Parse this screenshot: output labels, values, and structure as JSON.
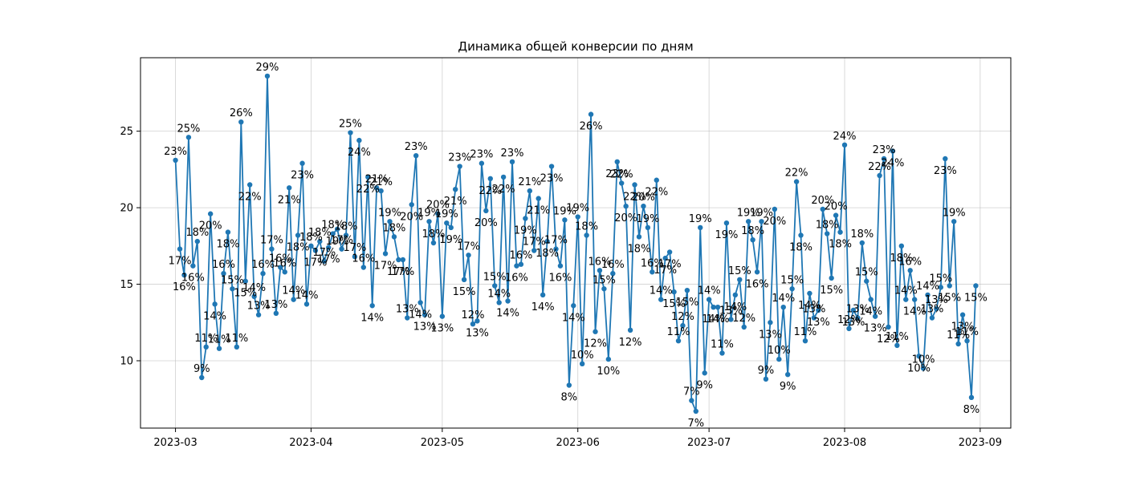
{
  "chart_data": {
    "type": "line",
    "title": "Динамика общей конверсии по дням",
    "xlabel": "",
    "ylabel": "",
    "x_start": "2023-03-01",
    "xlim": [
      "2023-02-21",
      "2023-09-08"
    ],
    "ylim": [
      5.6,
      29.8
    ],
    "x_ticks": [
      {
        "date": "2023-03-01",
        "label": "2023-03"
      },
      {
        "date": "2023-04-01",
        "label": "2023-04"
      },
      {
        "date": "2023-05-01",
        "label": "2023-05"
      },
      {
        "date": "2023-06-01",
        "label": "2023-06"
      },
      {
        "date": "2023-07-01",
        "label": "2023-07"
      },
      {
        "date": "2023-08-01",
        "label": "2023-08"
      },
      {
        "date": "2023-09-01",
        "label": "2023-09"
      }
    ],
    "y_ticks": [
      10,
      15,
      20,
      25
    ],
    "grid": true,
    "color": "#1f77b4",
    "labels_below": [
      1,
      2,
      4,
      8,
      9,
      12,
      16,
      17,
      26,
      28,
      29,
      32,
      35,
      37,
      42,
      44,
      45,
      48,
      51,
      52,
      54,
      56,
      57,
      61,
      63,
      64,
      66,
      69,
      71,
      72,
      75,
      76,
      78,
      80,
      83,
      84,
      85,
      86,
      88,
      90,
      91,
      95,
      96,
      99,
      101,
      103,
      104,
      105,
      106,
      110,
      112,
      113,
      114,
      117,
      119,
      121,
      123,
      124,
      126,
      128,
      133,
      136,
      137,
      140,
      143,
      145,
      147,
      150,
      152,
      155,
      159,
      160,
      163,
      164,
      166,
      169,
      170,
      176,
      177,
      180,
      182,
      183,
      186,
      191,
      192,
      194,
      198,
      200,
      203,
      204,
      206,
      207,
      211,
      212,
      214,
      215,
      219,
      220,
      226,
      227,
      229,
      230,
      231,
      232,
      233,
      236,
      238,
      239,
      241,
      243,
      245
    ],
    "values": [
      23.1,
      17.3,
      15.6,
      24.6,
      16.2,
      17.8,
      8.9,
      10.9,
      19.6,
      13.7,
      10.8,
      15.7,
      18.4,
      14.7,
      10.9,
      25.6,
      15.2,
      21.5,
      14.2,
      13.0,
      15.7,
      28.6,
      17.3,
      13.1,
      16.1,
      15.8,
      21.3,
      14.0,
      18.2,
      22.9,
      13.7,
      17.5,
      17.2,
      17.8,
      16.5,
      17.4,
      18.3,
      18.6,
      17.3,
      18.2,
      24.9,
      16.8,
      24.4,
      16.1,
      22.0,
      13.6,
      21.3,
      21.1,
      17.0,
      19.1,
      18.1,
      16.6,
      16.6,
      12.8,
      20.2,
      23.4,
      13.8,
      13.0,
      19.1,
      17.7,
      19.6,
      12.9,
      19.0,
      18.7,
      21.2,
      22.7,
      15.3,
      16.9,
      12.4,
      12.6,
      22.9,
      19.8,
      21.9,
      14.9,
      13.8,
      22.0,
      13.9,
      23.0,
      16.2,
      16.3,
      19.3,
      21.1,
      17.2,
      20.6,
      14.3,
      17.8,
      22.7,
      17.3,
      16.2,
      19.2,
      8.4,
      13.6,
      19.4,
      9.8,
      18.2,
      26.1,
      11.9,
      15.9,
      14.7,
      10.1,
      15.7,
      23.0,
      21.6,
      20.1,
      12.0,
      21.5,
      18.1,
      20.1,
      18.7,
      15.8,
      21.8,
      14.0,
      16.7,
      17.1,
      14.5,
      11.3,
      12.3,
      14.6,
      7.4,
      6.7,
      18.7,
      9.2,
      14.0,
      13.5,
      13.5,
      10.5,
      19.0,
      12.7,
      14.3,
      15.3,
      12.2,
      19.1,
      17.9,
      15.8,
      19.1,
      8.8,
      12.5,
      19.9,
      10.1,
      13.5,
      9.1,
      14.7,
      21.7,
      18.2,
      11.3,
      14.4,
      12.8,
      13.3,
      19.9,
      18.3,
      15.4,
      19.5,
      18.4,
      24.1,
      12.1,
      13.3,
      12.8,
      17.7,
      15.2,
      14.0,
      12.9,
      22.1,
      23.2,
      12.2,
      23.7,
      11.0,
      17.5,
      14.0,
      15.9,
      14.0,
      10.3,
      9.5,
      14.3,
      12.8,
      13.4,
      14.8,
      23.2,
      14.9,
      19.1,
      11.1,
      13.0,
      11.3,
      7.6,
      14.9
    ]
  }
}
